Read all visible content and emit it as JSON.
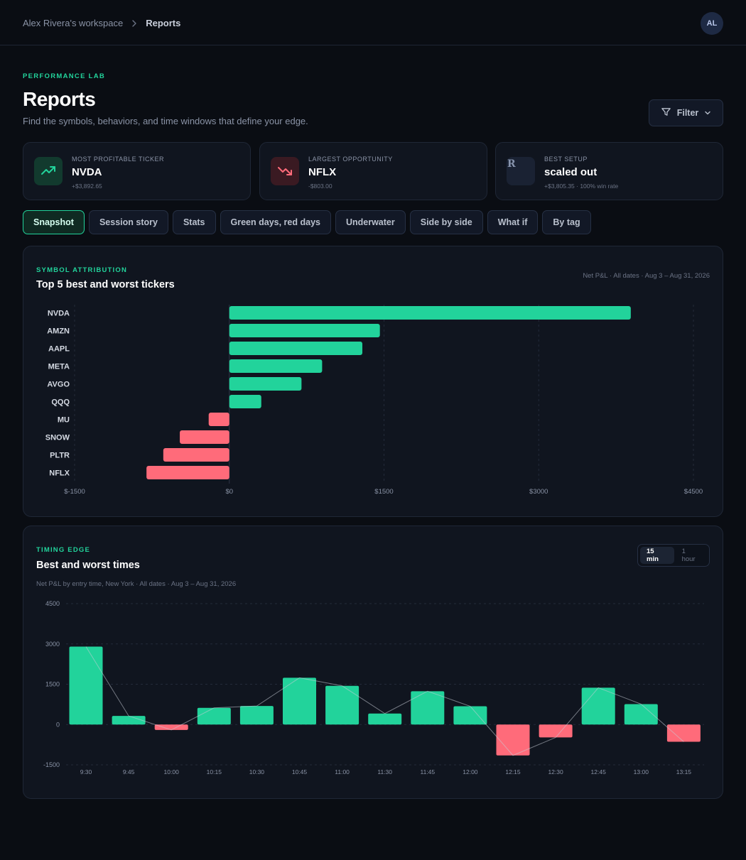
{
  "breadcrumb": {
    "workspace": "Alex Rivera's workspace",
    "current": "Reports"
  },
  "user": {
    "initials": "AL"
  },
  "header": {
    "eyebrow": "PERFORMANCE LAB",
    "title": "Reports",
    "subtitle": "Find the symbols, behaviors, and time windows that define your edge.",
    "filter_label": "Filter"
  },
  "kpis": [
    {
      "label": "MOST PROFITABLE TICKER",
      "value": "NVDA",
      "sub": "+$3,892.65",
      "icon": "trending-up-icon"
    },
    {
      "label": "LARGEST OPPORTUNITY",
      "value": "NFLX",
      "sub": "-$803.00",
      "icon": "trending-down-icon"
    },
    {
      "label": "BEST SETUP",
      "value": "scaled out",
      "sub": "+$3,805.35 · 100% win rate",
      "icon_text": "R"
    }
  ],
  "tabs": [
    "Snapshot",
    "Session story",
    "Stats",
    "Green days, red days",
    "Underwater",
    "Side by side",
    "What if",
    "By tag"
  ],
  "active_tab": 0,
  "colors": {
    "positive": "#22d39b",
    "negative": "#ff6b7a",
    "accent": "#22d39b"
  },
  "symbol_panel": {
    "eyebrow": "SYMBOL ATTRIBUTION",
    "title": "Top 5 best and worst tickers",
    "meta": "Net P&L · All dates · Aug 3 – Aug 31, 2026"
  },
  "timing_panel": {
    "eyebrow": "TIMING EDGE",
    "title": "Best and worst times",
    "meta": "Net P&L by entry time, New York · All dates · Aug 3 – Aug 31, 2026",
    "toggle": [
      "15 min",
      "1 hour"
    ],
    "toggle_active": 0
  },
  "chart_data": [
    {
      "type": "bar",
      "orientation": "horizontal",
      "title": "Top 5 best and worst tickers",
      "categories": [
        "NVDA",
        "AMZN",
        "AAPL",
        "META",
        "AVGO",
        "QQQ",
        "MU",
        "SNOW",
        "PLTR",
        "NFLX"
      ],
      "values": [
        3892.65,
        1460,
        1290,
        900,
        700,
        310,
        -200,
        -480,
        -640,
        -803
      ],
      "xlim": [
        -1500,
        4500
      ],
      "xticks": [
        -1500,
        0,
        1500,
        3000,
        4500
      ],
      "xtick_labels": [
        "$-1500",
        "$0",
        "$1500",
        "$3000",
        "$4500"
      ],
      "grid": true
    },
    {
      "type": "bar",
      "title": "Best and worst times",
      "categories": [
        "9:30",
        "9:45",
        "10:00",
        "10:15",
        "10:30",
        "10:45",
        "11:00",
        "11:30",
        "11:45",
        "12:00",
        "12:15",
        "12:30",
        "12:45",
        "13:00",
        "13:15"
      ],
      "values": [
        2900,
        320,
        -200,
        620,
        690,
        1740,
        1440,
        410,
        1240,
        680,
        -1150,
        -480,
        1370,
        760,
        -640
      ],
      "ylim": [
        -1500,
        4500
      ],
      "yticks": [
        -1500,
        0,
        1500,
        3000,
        4500
      ],
      "ytick_labels": [
        "-1500",
        "0",
        "1500",
        "3000",
        "4500"
      ],
      "overlay_line": true,
      "grid": true
    }
  ]
}
